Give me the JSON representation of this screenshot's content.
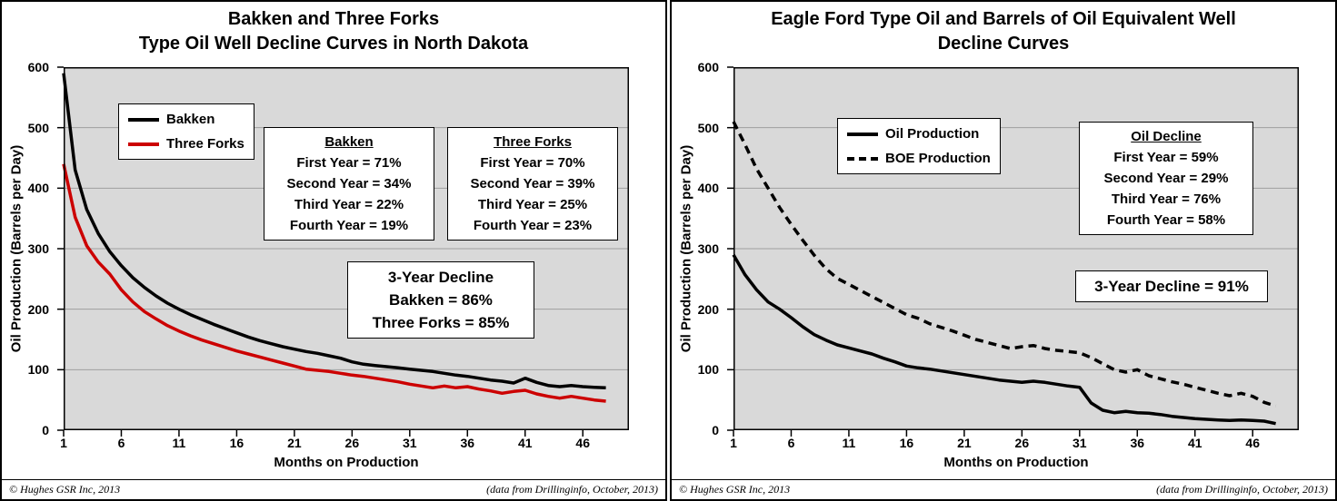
{
  "chart_data": [
    {
      "type": "line",
      "title_line1": "Bakken and Three Forks",
      "title_line2": "Type Oil Well Decline Curves in North Dakota",
      "xlabel": "Months on Production",
      "ylabel": "Oil Production (Barrels per Day)",
      "ylim": [
        0,
        600
      ],
      "ytick_step": 100,
      "xticks": [
        1,
        6,
        11,
        16,
        21,
        26,
        31,
        36,
        41,
        46
      ],
      "plot_bg": "#d9d9d9",
      "grid_color": "#9e9e9e",
      "legend": [
        {
          "label": "Bakken",
          "color": "#000000",
          "dash": "solid"
        },
        {
          "label": "Three Forks",
          "color": "#cc0000",
          "dash": "solid"
        }
      ],
      "stat_boxes": [
        {
          "title": "Bakken",
          "lines": [
            "First Year = 71%",
            "Second Year = 34%",
            "Third Year = 22%",
            "Fourth Year = 19%"
          ]
        },
        {
          "title": "Three Forks",
          "lines": [
            "First Year = 70%",
            "Second Year = 39%",
            "Third Year = 25%",
            "Fourth Year = 23%"
          ]
        }
      ],
      "summary_box": {
        "lines": [
          "3-Year Decline",
          "Bakken = 86%",
          "Three Forks = 85%"
        ]
      },
      "footer_left": "©  Hughes GSR Inc, 2013",
      "footer_right": "(data from  Drillinginfo, October, 2013)",
      "x_start_month": 1,
      "series": [
        {
          "name": "Bakken",
          "color": "#000000",
          "width": 3.5,
          "dash": "solid",
          "values": [
            590,
            430,
            365,
            325,
            295,
            272,
            252,
            236,
            222,
            210,
            200,
            191,
            183,
            175,
            168,
            161,
            154,
            148,
            143,
            138,
            134,
            130,
            127,
            123,
            119,
            113,
            109,
            107,
            105,
            103,
            101,
            99,
            97,
            94,
            91,
            89,
            86,
            83,
            81,
            78,
            86,
            79,
            74,
            72,
            74,
            72,
            71,
            70
          ]
        },
        {
          "name": "Three Forks",
          "color": "#cc0000",
          "width": 3.5,
          "dash": "solid",
          "values": [
            440,
            352,
            305,
            278,
            258,
            232,
            212,
            196,
            184,
            173,
            164,
            156,
            149,
            143,
            137,
            131,
            126,
            121,
            116,
            111,
            106,
            101,
            99,
            97,
            94,
            91,
            89,
            86,
            83,
            80,
            76,
            73,
            70,
            73,
            70,
            72,
            68,
            65,
            61,
            64,
            66,
            60,
            56,
            53,
            56,
            53,
            50,
            48
          ]
        }
      ]
    },
    {
      "type": "line",
      "title_line1": "Eagle Ford Type Oil and Barrels of Oil Equivalent Well",
      "title_line2": "Decline Curves",
      "xlabel": "Months on Production",
      "ylabel": "Oil Production (Barrels per Day)",
      "ylim": [
        0,
        600
      ],
      "ytick_step": 100,
      "xticks": [
        1,
        6,
        11,
        16,
        21,
        26,
        31,
        36,
        41,
        46
      ],
      "plot_bg": "#d9d9d9",
      "grid_color": "#9e9e9e",
      "legend": [
        {
          "label": "Oil Production",
          "color": "#000000",
          "dash": "solid"
        },
        {
          "label": "BOE Production",
          "color": "#000000",
          "dash": "9 6"
        }
      ],
      "stat_boxes": [
        {
          "title": "Oil Decline",
          "lines": [
            "First Year = 59%",
            "Second Year = 29%",
            "Third Year = 76%",
            "Fourth Year = 58%"
          ]
        }
      ],
      "summary_box": {
        "lines": [
          "3-Year Decline = 91%"
        ]
      },
      "footer_left": "©  Hughes GSR Inc, 2013",
      "footer_right": "(data from  Drillinginfo, October, 2013)",
      "x_start_month": 1,
      "series": [
        {
          "name": "Oil Production",
          "color": "#000000",
          "width": 3.5,
          "dash": "solid",
          "values": [
            290,
            257,
            232,
            212,
            200,
            186,
            171,
            158,
            149,
            141,
            136,
            131,
            126,
            119,
            113,
            106,
            103,
            101,
            98,
            95,
            92,
            89,
            86,
            83,
            81,
            79,
            81,
            79,
            76,
            73,
            71,
            45,
            33,
            29,
            31,
            29,
            28,
            26,
            23,
            21,
            19,
            18,
            17,
            16,
            17,
            16,
            15,
            11
          ]
        },
        {
          "name": "BOE Production",
          "color": "#000000",
          "width": 3.5,
          "dash": "9 6",
          "values": [
            510,
            472,
            432,
            400,
            368,
            340,
            314,
            289,
            267,
            251,
            241,
            231,
            221,
            211,
            201,
            191,
            185,
            176,
            170,
            164,
            157,
            150,
            145,
            140,
            135,
            138,
            140,
            135,
            132,
            130,
            128,
            120,
            110,
            100,
            96,
            100,
            90,
            85,
            80,
            76,
            71,
            66,
            61,
            57,
            61,
            56,
            46,
            40
          ]
        }
      ]
    }
  ]
}
